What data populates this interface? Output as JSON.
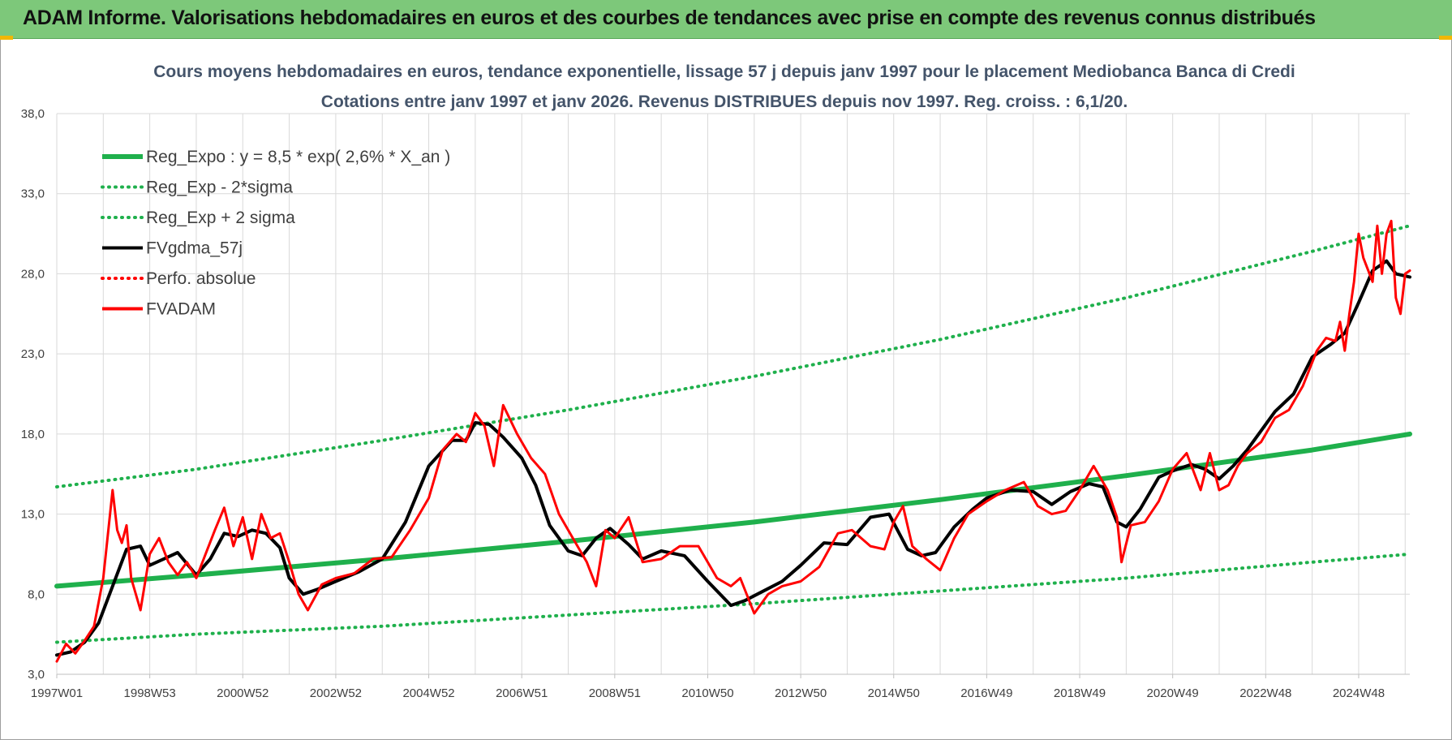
{
  "header": {
    "title": "ADAM Informe. Valorisations hebdomadaires en euros et des courbes de tendances avec prise en compte des revenus connus distribués"
  },
  "colors": {
    "banner": "#7dc87a",
    "reg": "#1fb04c",
    "black": "#000000",
    "red": "#ff0000",
    "grid": "#d9d9d9"
  },
  "chart_data": {
    "type": "line",
    "title": "Cours moyens hebdomadaires en euros, tendance exponentielle, lissage 57 j depuis janv 1997 pour le placement Mediobanca Banca di Credi",
    "subtitle": "Cotations entre janv 1997 et janv 2026. Revenus DISTRIBUES depuis nov 1997. Reg. croiss. : 6,1/20.",
    "xlabel": "",
    "ylabel": "",
    "ylim": [
      3,
      38
    ],
    "xlim": [
      1997.0,
      2026.1
    ],
    "grid": true,
    "legend_position": "top-left",
    "y_ticks": [
      3,
      8,
      13,
      18,
      23,
      28,
      33,
      38
    ],
    "y_tick_labels": [
      "3,0",
      "8,0",
      "13,0",
      "18,0",
      "23,0",
      "28,0",
      "33,0",
      "38,0"
    ],
    "x_ticks": [
      1997.0,
      1999.0,
      2001.0,
      2003.0,
      2005.0,
      2007.0,
      2009.0,
      2011.0,
      2013.0,
      2015.0,
      2017.0,
      2019.0,
      2021.0,
      2023.0,
      2025.0
    ],
    "x_tick_labels": [
      "1997W01",
      "1998W53",
      "2000W52",
      "2002W52",
      "2004W52",
      "2006W51",
      "2008W51",
      "2010W50",
      "2012W50",
      "2014W50",
      "2016W49",
      "2018W49",
      "2020W49",
      "2022W48",
      "2024W48"
    ],
    "legend": [
      {
        "label": "Reg_Expo : y = 8,5 * exp( 2,6% *  X_an )",
        "color": "#1fb04c",
        "style": "solid"
      },
      {
        "label": "Reg_Exp - 2*sigma",
        "color": "#1fb04c",
        "style": "dotted"
      },
      {
        "label": "Reg_Exp + 2 sigma",
        "color": "#1fb04c",
        "style": "dotted"
      },
      {
        "label": "FVgdma_57j",
        "color": "#000000",
        "style": "solid"
      },
      {
        "label": "Perfo. absolue",
        "color": "#ff0000",
        "style": "dotted"
      },
      {
        "label": "FVADAM",
        "color": "#ff0000",
        "style": "solid"
      }
    ],
    "series": [
      {
        "name": "Reg_Expo",
        "x": [
          1997.0,
          2000.0,
          2004.0,
          2008.0,
          2012.0,
          2016.0,
          2020.0,
          2024.0,
          2026.1
        ],
        "values": [
          8.5,
          9.2,
          10.2,
          11.3,
          12.5,
          13.9,
          15.4,
          17.0,
          18.0
        ]
      },
      {
        "name": "Reg_Exp - 2*sigma",
        "x": [
          1997.0,
          2000.0,
          2004.0,
          2008.0,
          2012.0,
          2016.0,
          2020.0,
          2024.0,
          2026.1
        ],
        "values": [
          5.0,
          5.5,
          6.0,
          6.7,
          7.4,
          8.2,
          9.0,
          10.0,
          10.5
        ]
      },
      {
        "name": "Reg_Exp + 2 sigma",
        "x": [
          1997.0,
          2000.0,
          2004.0,
          2008.0,
          2012.0,
          2016.0,
          2020.0,
          2024.0,
          2026.1
        ],
        "values": [
          14.7,
          15.8,
          17.6,
          19.5,
          21.6,
          23.9,
          26.5,
          29.4,
          31.0
        ]
      },
      {
        "name": "FVgdma_57j",
        "x": [
          1997.0,
          1997.3,
          1997.6,
          1997.9,
          1998.2,
          1998.5,
          1998.8,
          1999.0,
          1999.3,
          1999.6,
          2000.0,
          2000.3,
          2000.6,
          2000.9,
          2001.2,
          2001.5,
          2001.8,
          2002.0,
          2002.3,
          2002.6,
          2003.0,
          2003.5,
          2004.0,
          2004.5,
          2005.0,
          2005.5,
          2005.8,
          2006.0,
          2006.3,
          2006.6,
          2007.0,
          2007.3,
          2007.6,
          2008.0,
          2008.3,
          2008.6,
          2008.9,
          2009.3,
          2009.6,
          2010.0,
          2010.5,
          2011.0,
          2011.5,
          2011.8,
          2012.2,
          2012.6,
          2013.0,
          2013.5,
          2014.0,
          2014.5,
          2014.9,
          2015.3,
          2015.6,
          2015.9,
          2016.3,
          2016.7,
          2017.0,
          2017.5,
          2018.0,
          2018.4,
          2018.8,
          2019.2,
          2019.5,
          2019.8,
          2020.0,
          2020.3,
          2020.7,
          2021.0,
          2021.4,
          2021.7,
          2022.0,
          2022.3,
          2022.6,
          2022.9,
          2023.2,
          2023.6,
          2024.0,
          2024.4,
          2024.7,
          2025.0,
          2025.3,
          2025.6,
          2025.8,
          2026.1
        ],
        "values": [
          4.2,
          4.4,
          5.0,
          6.2,
          8.5,
          10.8,
          11.0,
          9.8,
          10.2,
          10.6,
          9.2,
          10.2,
          11.8,
          11.6,
          12.0,
          11.8,
          10.9,
          9.0,
          8.0,
          8.3,
          8.8,
          9.4,
          10.2,
          12.5,
          16.0,
          17.6,
          17.6,
          18.7,
          18.6,
          17.8,
          16.5,
          14.8,
          12.3,
          10.7,
          10.4,
          11.5,
          12.1,
          11.1,
          10.2,
          10.7,
          10.4,
          8.8,
          7.3,
          7.6,
          8.2,
          8.8,
          9.8,
          11.2,
          11.1,
          12.8,
          13.0,
          10.8,
          10.4,
          10.6,
          12.2,
          13.3,
          14.0,
          14.5,
          14.4,
          13.6,
          14.4,
          14.9,
          14.7,
          12.5,
          12.2,
          13.3,
          15.3,
          15.7,
          16.1,
          15.8,
          15.2,
          16.0,
          17.0,
          18.2,
          19.4,
          20.5,
          22.8,
          23.6,
          24.3,
          26.2,
          28.2,
          28.8,
          28.0,
          27.8
        ]
      },
      {
        "name": "FVADAM",
        "x": [
          1997.0,
          1997.2,
          1997.4,
          1997.6,
          1997.8,
          1998.0,
          1998.2,
          1998.3,
          1998.4,
          1998.5,
          1998.6,
          1998.8,
          1999.0,
          1999.2,
          1999.4,
          1999.6,
          1999.8,
          2000.0,
          2000.2,
          2000.4,
          2000.6,
          2000.8,
          2001.0,
          2001.2,
          2001.4,
          2001.6,
          2001.8,
          2002.0,
          2002.2,
          2002.4,
          2002.7,
          2003.0,
          2003.4,
          2003.8,
          2004.2,
          2004.6,
          2005.0,
          2005.3,
          2005.6,
          2005.8,
          2006.0,
          2006.2,
          2006.4,
          2006.6,
          2006.9,
          2007.2,
          2007.5,
          2007.8,
          2008.1,
          2008.4,
          2008.6,
          2008.8,
          2009.0,
          2009.3,
          2009.6,
          2010.0,
          2010.4,
          2010.8,
          2011.2,
          2011.5,
          2011.7,
          2012.0,
          2012.3,
          2012.6,
          2013.0,
          2013.4,
          2013.8,
          2014.1,
          2014.5,
          2014.8,
          2015.0,
          2015.2,
          2015.4,
          2015.7,
          2016.0,
          2016.3,
          2016.6,
          2017.0,
          2017.4,
          2017.8,
          2018.1,
          2018.4,
          2018.7,
          2019.0,
          2019.3,
          2019.6,
          2019.8,
          2019.9,
          2020.1,
          2020.4,
          2020.7,
          2021.0,
          2021.3,
          2021.6,
          2021.8,
          2022.0,
          2022.2,
          2022.4,
          2022.6,
          2022.9,
          2023.2,
          2023.5,
          2023.8,
          2024.1,
          2024.3,
          2024.5,
          2024.6,
          2024.7,
          2024.8,
          2024.9,
          2025.0,
          2025.1,
          2025.3,
          2025.4,
          2025.5,
          2025.6,
          2025.7,
          2025.8,
          2025.9,
          2026.0,
          2026.1
        ],
        "values": [
          3.8,
          4.9,
          4.3,
          5.1,
          6.0,
          9.0,
          14.5,
          12.0,
          11.2,
          12.3,
          9.0,
          7.0,
          10.5,
          11.5,
          10.0,
          9.2,
          10.0,
          9.0,
          10.5,
          12.0,
          13.4,
          11.0,
          12.8,
          10.2,
          13.0,
          11.5,
          11.8,
          10.0,
          8.0,
          7.0,
          8.6,
          9.0,
          9.3,
          10.2,
          10.3,
          12.0,
          14.0,
          17.0,
          18.0,
          17.5,
          19.3,
          18.5,
          16.0,
          19.8,
          18.0,
          16.5,
          15.5,
          13.0,
          11.5,
          10.0,
          8.5,
          12.0,
          11.5,
          12.8,
          10.0,
          10.2,
          11.0,
          11.0,
          9.0,
          8.5,
          9.0,
          6.8,
          8.0,
          8.5,
          8.8,
          9.7,
          11.8,
          12.0,
          11.0,
          10.8,
          12.5,
          13.5,
          11.0,
          10.2,
          9.5,
          11.5,
          13.0,
          13.8,
          14.5,
          15.0,
          13.5,
          13.0,
          13.2,
          14.5,
          16.0,
          14.5,
          12.8,
          10.0,
          12.3,
          12.5,
          13.8,
          15.8,
          16.8,
          14.5,
          16.8,
          14.5,
          14.8,
          16.0,
          16.8,
          17.5,
          19.0,
          19.5,
          21.0,
          23.2,
          24.0,
          23.8,
          25.0,
          23.2,
          25.5,
          27.5,
          30.5,
          29.0,
          27.5,
          31.0,
          28.0,
          30.5,
          31.3,
          26.5,
          25.5,
          28.0,
          28.2
        ]
      }
    ]
  }
}
